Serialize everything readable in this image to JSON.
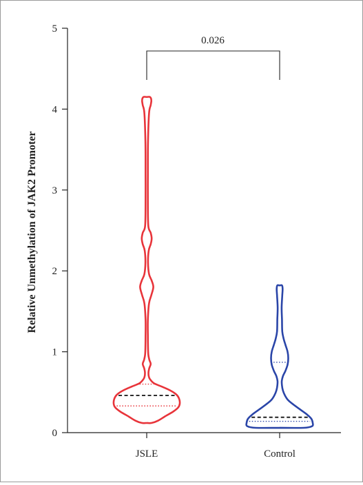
{
  "chart_data": {
    "type": "violin",
    "ylabel": "Relative Unmethylation of JAK2 Promoter",
    "xlabel": "",
    "ylim": [
      0,
      5
    ],
    "yticks": [
      "0",
      "1",
      "2",
      "3",
      "4",
      "5"
    ],
    "categories": [
      "JSLE",
      "Control"
    ],
    "series": [
      {
        "name": "JSLE",
        "color": "#e8343a",
        "min": 0.12,
        "q1": 0.33,
        "median": 0.46,
        "q3": 0.6,
        "max": 4.15,
        "density": [
          [
            0.12,
            0.15
          ],
          [
            0.15,
            0.35
          ],
          [
            0.2,
            0.55
          ],
          [
            0.26,
            0.8
          ],
          [
            0.31,
            0.95
          ],
          [
            0.36,
            1.0
          ],
          [
            0.42,
            0.98
          ],
          [
            0.47,
            0.9
          ],
          [
            0.52,
            0.72
          ],
          [
            0.57,
            0.45
          ],
          [
            0.61,
            0.22
          ],
          [
            0.66,
            0.1
          ],
          [
            0.7,
            0.06
          ],
          [
            0.75,
            0.055
          ],
          [
            0.8,
            0.08
          ],
          [
            0.85,
            0.12
          ],
          [
            0.9,
            0.08
          ],
          [
            0.96,
            0.05
          ],
          [
            1.05,
            0.04
          ],
          [
            1.2,
            0.035
          ],
          [
            1.4,
            0.035
          ],
          [
            1.6,
            0.07
          ],
          [
            1.7,
            0.14
          ],
          [
            1.8,
            0.2
          ],
          [
            1.88,
            0.15
          ],
          [
            1.96,
            0.07
          ],
          [
            2.1,
            0.04
          ],
          [
            2.25,
            0.06
          ],
          [
            2.33,
            0.12
          ],
          [
            2.4,
            0.15
          ],
          [
            2.47,
            0.12
          ],
          [
            2.55,
            0.05
          ],
          [
            2.8,
            0.035
          ],
          [
            3.2,
            0.035
          ],
          [
            3.6,
            0.04
          ],
          [
            3.95,
            0.07
          ],
          [
            4.05,
            0.12
          ],
          [
            4.11,
            0.14
          ],
          [
            4.15,
            0.1
          ]
        ]
      },
      {
        "name": "Control",
        "color": "#2a45a8",
        "min": 0.06,
        "q1": 0.14,
        "median": 0.19,
        "q3": 0.87,
        "max": 1.82,
        "density": [
          [
            0.06,
            0.72
          ],
          [
            0.08,
            0.98
          ],
          [
            0.12,
            1.0
          ],
          [
            0.17,
            0.96
          ],
          [
            0.22,
            0.84
          ],
          [
            0.28,
            0.64
          ],
          [
            0.34,
            0.44
          ],
          [
            0.4,
            0.26
          ],
          [
            0.46,
            0.16
          ],
          [
            0.52,
            0.1
          ],
          [
            0.58,
            0.07
          ],
          [
            0.64,
            0.065
          ],
          [
            0.7,
            0.1
          ],
          [
            0.76,
            0.17
          ],
          [
            0.84,
            0.24
          ],
          [
            0.92,
            0.26
          ],
          [
            1.0,
            0.24
          ],
          [
            1.08,
            0.18
          ],
          [
            1.16,
            0.12
          ],
          [
            1.25,
            0.08
          ],
          [
            1.4,
            0.07
          ],
          [
            1.55,
            0.06
          ],
          [
            1.7,
            0.08
          ],
          [
            1.78,
            0.09
          ],
          [
            1.82,
            0.07
          ]
        ]
      }
    ],
    "annotation": {
      "text": "0.026",
      "between": [
        "JSLE",
        "Control"
      ]
    }
  }
}
